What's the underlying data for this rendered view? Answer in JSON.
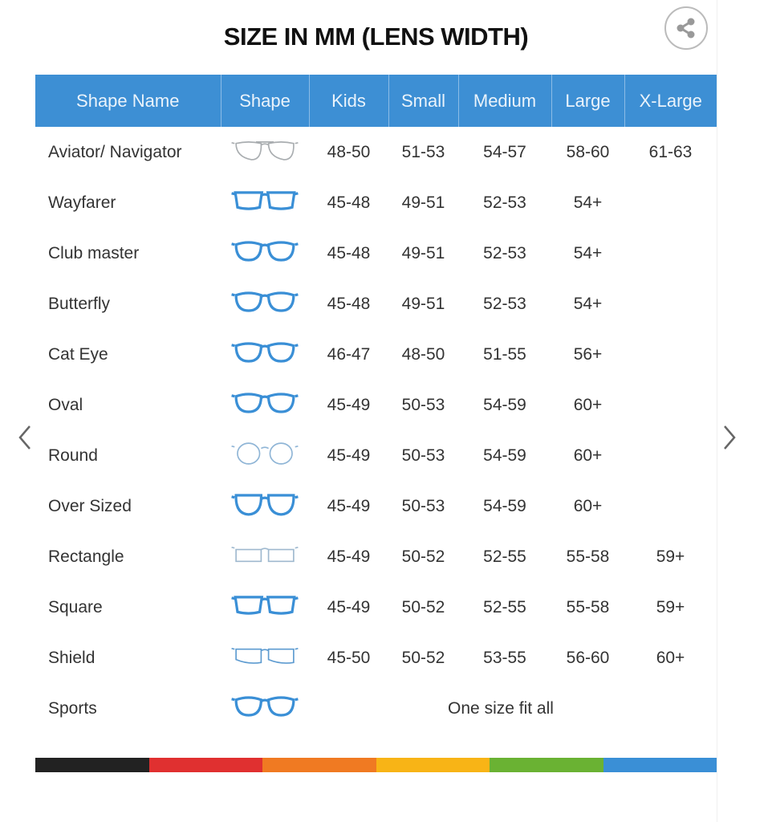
{
  "title": "SIZE IN MM (LENS WIDTH)",
  "headers": [
    "Shape Name",
    "Shape",
    "Kids",
    "Small",
    "Medium",
    "Large",
    "X-Large"
  ],
  "rows": [
    {
      "name": "Aviator/ Navigator",
      "icon": "aviator",
      "color": "#a9adb0",
      "sizes": [
        "48-50",
        "51-53",
        "54-57",
        "58-60",
        "61-63"
      ]
    },
    {
      "name": "Wayfarer",
      "icon": "wayfarer",
      "color": "#3a8fd6",
      "sizes": [
        "45-48",
        "49-51",
        "52-53",
        "54+",
        ""
      ]
    },
    {
      "name": "Club master",
      "icon": "clubmaster",
      "color": "#3a8fd6",
      "sizes": [
        "45-48",
        "49-51",
        "52-53",
        "54+",
        ""
      ]
    },
    {
      "name": "Butterfly",
      "icon": "butterfly",
      "color": "#3a8fd6",
      "sizes": [
        "45-48",
        "49-51",
        "52-53",
        "54+",
        ""
      ]
    },
    {
      "name": "Cat Eye",
      "icon": "cateye",
      "color": "#3a8fd6",
      "sizes": [
        "46-47",
        "48-50",
        "51-55",
        "56+",
        ""
      ]
    },
    {
      "name": "Oval",
      "icon": "oval",
      "color": "#3a8fd6",
      "sizes": [
        "45-49",
        "50-53",
        "54-59",
        "60+",
        ""
      ]
    },
    {
      "name": "Round",
      "icon": "round",
      "color": "#8fb5d6",
      "sizes": [
        "45-49",
        "50-53",
        "54-59",
        "60+",
        ""
      ]
    },
    {
      "name": "Over Sized",
      "icon": "oversized",
      "color": "#3a8fd6",
      "sizes": [
        "45-49",
        "50-53",
        "54-59",
        "60+",
        ""
      ]
    },
    {
      "name": "Rectangle",
      "icon": "rectangle",
      "color": "#9fb9cf",
      "sizes": [
        "45-49",
        "50-52",
        "52-55",
        "55-58",
        "59+"
      ]
    },
    {
      "name": "Square",
      "icon": "square",
      "color": "#3a8fd6",
      "sizes": [
        "45-49",
        "50-52",
        "52-55",
        "55-58",
        "59+"
      ]
    },
    {
      "name": "Shield",
      "icon": "shield",
      "color": "#5d9bd0",
      "sizes": [
        "45-50",
        "50-52",
        "53-55",
        "56-60",
        "60+"
      ]
    },
    {
      "name": "Sports",
      "icon": "sports",
      "color": "#3a8fd6",
      "span_text": "One size fit all"
    }
  ],
  "color_bar": [
    "#222222",
    "#e03030",
    "#f07a22",
    "#f8b416",
    "#6ab233",
    "#3a8fd6"
  ],
  "header_color": "#3d8fd4",
  "icons": {
    "share": "share-icon",
    "prev": "chevron-left-icon",
    "next": "chevron-right-icon"
  }
}
